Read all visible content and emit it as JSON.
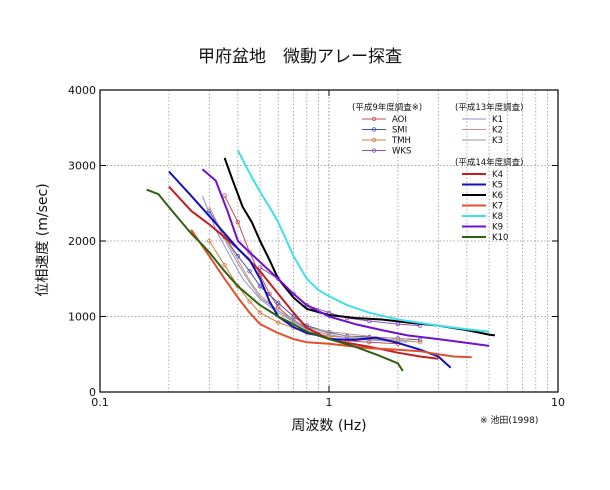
{
  "chart_data": {
    "type": "line",
    "title": "甲府盆地　微動アレー探査",
    "xlabel": "周波数 (Hz)",
    "ylabel": "位相速度 (m/sec)",
    "xscale": "log",
    "xlim": [
      0.1,
      10
    ],
    "ylim": [
      0,
      4000
    ],
    "x_ticks": [
      0.1,
      1,
      10
    ],
    "x_tick_labels": [
      "0.1",
      "1",
      "10"
    ],
    "y_ticks": [
      0,
      1000,
      2000,
      3000,
      4000
    ],
    "y_tick_labels": [
      "0",
      "1000",
      "2000",
      "3000",
      "4000"
    ],
    "grid": true,
    "legend_position": "top-right",
    "citation": "※ 池田(1998)",
    "legend_groups": [
      {
        "heading": "(平成9年度調査※)",
        "series": [
          "AOI",
          "SMI",
          "TMH",
          "WKS"
        ]
      },
      {
        "heading": "(平成13年度調査)",
        "series": [
          "K1",
          "K2",
          "K3"
        ]
      },
      {
        "heading": "(平成14年度調査)",
        "series": [
          "K4",
          "K5",
          "K6",
          "K7",
          "K8",
          "K9",
          "K10"
        ]
      }
    ],
    "series": [
      {
        "name": "AOI",
        "color": "#c25050",
        "width": 1,
        "marker": true,
        "points": [
          [
            0.35,
            2600
          ],
          [
            0.4,
            2250
          ],
          [
            0.45,
            1850
          ],
          [
            0.5,
            1550
          ],
          [
            0.55,
            1300
          ],
          [
            0.6,
            1120
          ],
          [
            0.7,
            950
          ],
          [
            0.8,
            840
          ],
          [
            0.9,
            760
          ],
          [
            1.0,
            720
          ],
          [
            1.2,
            680
          ],
          [
            1.5,
            660
          ],
          [
            2.0,
            640
          ]
        ]
      },
      {
        "name": "SMI",
        "color": "#5050b0",
        "width": 1,
        "marker": true,
        "points": [
          [
            0.3,
            2400
          ],
          [
            0.35,
            2050
          ],
          [
            0.4,
            1800
          ],
          [
            0.45,
            1600
          ],
          [
            0.5,
            1400
          ],
          [
            0.6,
            1180
          ],
          [
            0.7,
            1000
          ],
          [
            0.8,
            880
          ],
          [
            1.0,
            790
          ],
          [
            1.2,
            740
          ],
          [
            1.5,
            730
          ],
          [
            2.0,
            710
          ],
          [
            2.5,
            690
          ]
        ]
      },
      {
        "name": "TMH",
        "color": "#d08040",
        "width": 1,
        "marker": true,
        "points": [
          [
            0.3,
            2000
          ],
          [
            0.35,
            1680
          ],
          [
            0.4,
            1400
          ],
          [
            0.45,
            1200
          ],
          [
            0.5,
            1050
          ],
          [
            0.6,
            920
          ],
          [
            0.7,
            850
          ],
          [
            0.8,
            790
          ],
          [
            1.0,
            740
          ],
          [
            1.2,
            720
          ],
          [
            1.5,
            700
          ],
          [
            2.0,
            690
          ],
          [
            2.5,
            660
          ]
        ]
      },
      {
        "name": "WKS",
        "color": "#9050c0",
        "width": 1,
        "marker": true,
        "points": [
          [
            0.5,
            1650
          ],
          [
            0.6,
            1500
          ],
          [
            0.7,
            1300
          ],
          [
            0.8,
            1150
          ],
          [
            1.0,
            1050
          ],
          [
            1.2,
            980
          ],
          [
            1.5,
            940
          ],
          [
            2.0,
            900
          ],
          [
            2.5,
            880
          ]
        ]
      },
      {
        "name": "K1",
        "color": "#9090d0",
        "width": 1,
        "marker": false,
        "points": [
          [
            0.28,
            2600
          ],
          [
            0.32,
            2150
          ],
          [
            0.37,
            1800
          ],
          [
            0.42,
            1500
          ],
          [
            0.5,
            1230
          ],
          [
            0.6,
            1050
          ],
          [
            0.7,
            930
          ],
          [
            0.8,
            830
          ],
          [
            1.0,
            760
          ],
          [
            1.3,
            700
          ],
          [
            1.7,
            680
          ],
          [
            2.2,
            660
          ]
        ]
      },
      {
        "name": "K2",
        "color": "#d09090",
        "width": 1,
        "marker": false,
        "points": [
          [
            0.3,
            2450
          ],
          [
            0.35,
            2050
          ],
          [
            0.4,
            1750
          ],
          [
            0.45,
            1480
          ],
          [
            0.5,
            1280
          ],
          [
            0.6,
            1080
          ],
          [
            0.7,
            960
          ],
          [
            0.8,
            860
          ],
          [
            1.0,
            800
          ],
          [
            1.3,
            760
          ],
          [
            1.7,
            720
          ],
          [
            2.2,
            700
          ]
        ]
      },
      {
        "name": "K3",
        "color": "#90a090",
        "width": 1,
        "marker": false,
        "points": [
          [
            0.32,
            2250
          ],
          [
            0.36,
            1950
          ],
          [
            0.4,
            1700
          ],
          [
            0.45,
            1450
          ],
          [
            0.5,
            1250
          ],
          [
            0.6,
            1080
          ],
          [
            0.7,
            940
          ],
          [
            0.8,
            860
          ],
          [
            1.0,
            780
          ],
          [
            1.3,
            730
          ],
          [
            1.7,
            700
          ],
          [
            2.2,
            680
          ]
        ]
      },
      {
        "name": "K4",
        "color": "#c02020",
        "width": 2,
        "marker": false,
        "points": [
          [
            0.2,
            2720
          ],
          [
            0.25,
            2400
          ],
          [
            0.3,
            2220
          ],
          [
            0.35,
            2050
          ],
          [
            0.4,
            1900
          ],
          [
            0.5,
            1600
          ],
          [
            0.6,
            1300
          ],
          [
            0.7,
            1050
          ],
          [
            0.8,
            850
          ],
          [
            1.0,
            700
          ],
          [
            1.2,
            650
          ],
          [
            1.5,
            600
          ],
          [
            2.0,
            520
          ],
          [
            2.5,
            470
          ],
          [
            3.0,
            440
          ]
        ]
      },
      {
        "name": "K5",
        "color": "#1010c0",
        "width": 2,
        "marker": false,
        "points": [
          [
            0.2,
            2920
          ],
          [
            0.25,
            2600
          ],
          [
            0.3,
            2330
          ],
          [
            0.35,
            2100
          ],
          [
            0.4,
            1900
          ],
          [
            0.45,
            1750
          ],
          [
            0.5,
            1500
          ],
          [
            0.55,
            1200
          ],
          [
            0.6,
            1000
          ],
          [
            0.7,
            860
          ],
          [
            0.8,
            780
          ],
          [
            0.9,
            750
          ],
          [
            1.0,
            700
          ],
          [
            1.3,
            690
          ],
          [
            1.6,
            720
          ],
          [
            2.0,
            650
          ],
          [
            2.5,
            560
          ],
          [
            3.0,
            470
          ],
          [
            3.4,
            320
          ]
        ]
      },
      {
        "name": "K6",
        "color": "#000000",
        "width": 2,
        "marker": false,
        "points": [
          [
            0.35,
            3100
          ],
          [
            0.38,
            2800
          ],
          [
            0.42,
            2450
          ],
          [
            0.46,
            2250
          ],
          [
            0.5,
            2000
          ],
          [
            0.55,
            1750
          ],
          [
            0.6,
            1500
          ],
          [
            0.7,
            1250
          ],
          [
            0.8,
            1100
          ],
          [
            1.0,
            1020
          ],
          [
            1.3,
            980
          ],
          [
            1.7,
            960
          ],
          [
            2.2,
            920
          ],
          [
            3.0,
            880
          ],
          [
            4.0,
            820
          ],
          [
            5.0,
            760
          ],
          [
            5.3,
            750
          ]
        ]
      },
      {
        "name": "K7",
        "color": "#e05030",
        "width": 2,
        "marker": false,
        "points": [
          [
            0.25,
            2150
          ],
          [
            0.3,
            1800
          ],
          [
            0.35,
            1500
          ],
          [
            0.4,
            1250
          ],
          [
            0.45,
            1050
          ],
          [
            0.5,
            900
          ],
          [
            0.6,
            780
          ],
          [
            0.7,
            700
          ],
          [
            0.8,
            660
          ],
          [
            1.0,
            640
          ],
          [
            1.5,
            580
          ],
          [
            2.0,
            560
          ],
          [
            2.5,
            540
          ],
          [
            3.0,
            500
          ],
          [
            3.5,
            470
          ],
          [
            4.2,
            460
          ]
        ]
      },
      {
        "name": "K8",
        "color": "#40e0e8",
        "width": 2,
        "marker": false,
        "points": [
          [
            0.4,
            3200
          ],
          [
            0.45,
            2900
          ],
          [
            0.5,
            2650
          ],
          [
            0.55,
            2450
          ],
          [
            0.6,
            2250
          ],
          [
            0.7,
            1800
          ],
          [
            0.8,
            1500
          ],
          [
            0.9,
            1350
          ],
          [
            1.0,
            1270
          ],
          [
            1.2,
            1150
          ],
          [
            1.5,
            1050
          ],
          [
            2.0,
            960
          ],
          [
            3.0,
            880
          ],
          [
            4.0,
            830
          ],
          [
            5.0,
            800
          ]
        ]
      },
      {
        "name": "K9",
        "color": "#7010d0",
        "width": 2,
        "marker": false,
        "points": [
          [
            0.28,
            2950
          ],
          [
            0.32,
            2800
          ],
          [
            0.36,
            2400
          ],
          [
            0.4,
            2000
          ],
          [
            0.45,
            1850
          ],
          [
            0.5,
            1720
          ],
          [
            0.6,
            1500
          ],
          [
            0.7,
            1300
          ],
          [
            0.8,
            1150
          ],
          [
            1.0,
            1000
          ],
          [
            1.3,
            900
          ],
          [
            1.7,
            820
          ],
          [
            2.2,
            750
          ],
          [
            3.0,
            700
          ],
          [
            4.0,
            650
          ],
          [
            5.0,
            610
          ]
        ]
      },
      {
        "name": "K10",
        "color": "#306010",
        "width": 2,
        "marker": false,
        "points": [
          [
            0.16,
            2680
          ],
          [
            0.18,
            2620
          ],
          [
            0.2,
            2450
          ],
          [
            0.22,
            2300
          ],
          [
            0.25,
            2100
          ],
          [
            0.28,
            1950
          ],
          [
            0.3,
            1850
          ],
          [
            0.35,
            1600
          ],
          [
            0.4,
            1400
          ],
          [
            0.5,
            1150
          ],
          [
            0.6,
            1000
          ],
          [
            0.7,
            900
          ],
          [
            0.8,
            800
          ],
          [
            1.0,
            700
          ],
          [
            1.3,
            600
          ],
          [
            1.6,
            500
          ],
          [
            2.0,
            380
          ],
          [
            2.1,
            280
          ]
        ]
      }
    ]
  }
}
